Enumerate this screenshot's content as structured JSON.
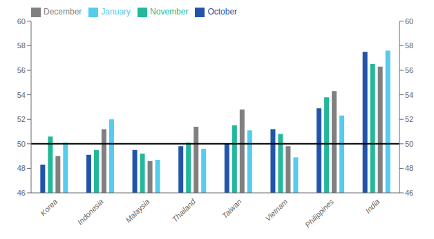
{
  "chart_data": {
    "type": "bar",
    "categories": [
      "Korea",
      "Indonesia",
      "Malaysia",
      "Thailand",
      "Taiwan",
      "Vietnam",
      "Philippines",
      "India"
    ],
    "series": [
      {
        "name": "October",
        "color": "#2255aa",
        "values": [
          48.3,
          49.1,
          49.5,
          49.8,
          50.0,
          51.2,
          52.9,
          57.5
        ]
      },
      {
        "name": "November",
        "color": "#22b89a",
        "values": [
          50.6,
          49.5,
          49.2,
          50.1,
          51.5,
          50.8,
          53.8,
          56.5
        ]
      },
      {
        "name": "December",
        "color": "#808080",
        "values": [
          49.0,
          51.2,
          48.6,
          51.4,
          52.8,
          49.8,
          54.3,
          56.3
        ]
      },
      {
        "name": "January",
        "color": "#55ccee",
        "values": [
          50.1,
          52.0,
          48.7,
          49.6,
          51.1,
          48.9,
          52.3,
          57.6
        ]
      }
    ],
    "ylim": [
      46,
      60
    ],
    "yticks": [
      46,
      48,
      50,
      52,
      54,
      56,
      58,
      60
    ],
    "y2lim": [
      46,
      60
    ],
    "y2ticks": [
      46,
      48,
      50,
      52,
      54,
      56,
      58,
      60
    ],
    "hline": 50,
    "grid": false,
    "legend": "upper left"
  }
}
